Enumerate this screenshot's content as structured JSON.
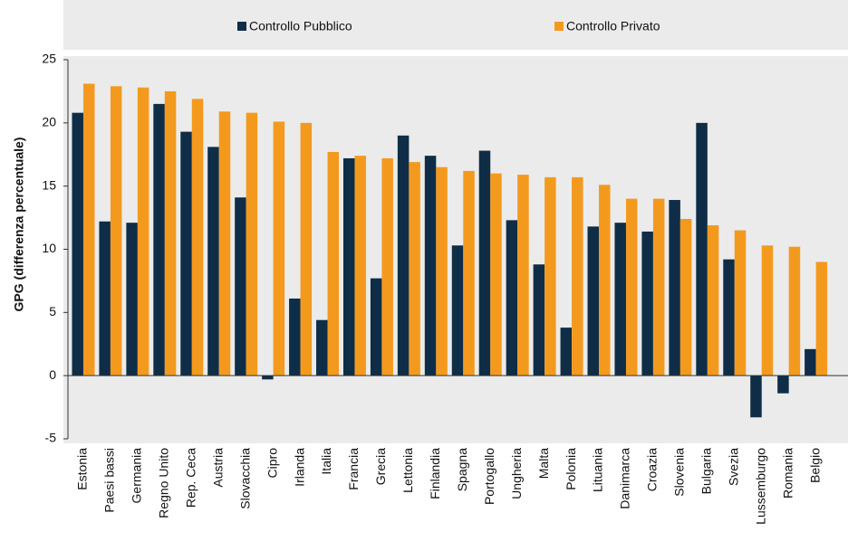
{
  "chart_data": {
    "type": "bar",
    "y_label": "GPG (differenza percentuale)",
    "categories": [
      "Estonia",
      "Paesi bassi",
      "Germania",
      "Regno Unito",
      "Rep. Ceca",
      "Austria",
      "Slovacchia",
      "Cipro",
      "Irlanda",
      "Italia",
      "Francia",
      "Grecia",
      "Lettonia",
      "Finlandia",
      "Spagna",
      "Portogallo",
      "Ungheria",
      "Malta",
      "Polonia",
      "Lituania",
      "Danimarca",
      "Croazia",
      "Slovenia",
      "Bulgaria",
      "Svezia",
      "Lussemburgo",
      "Romania",
      "Belgio"
    ],
    "series": [
      {
        "name": "Controllo Pubblico",
        "color": "#0f2d46",
        "values": [
          20.8,
          12.2,
          12.1,
          21.5,
          19.3,
          18.1,
          14.1,
          -0.3,
          6.1,
          4.4,
          17.2,
          7.7,
          19.0,
          17.4,
          10.3,
          17.8,
          12.3,
          8.8,
          3.8,
          11.8,
          12.1,
          11.4,
          13.9,
          20.0,
          9.2,
          -3.3,
          -1.4,
          2.1
        ]
      },
      {
        "name": "Controllo Privato",
        "color": "#f39a1e",
        "values": [
          23.1,
          22.9,
          22.8,
          22.5,
          21.9,
          20.9,
          20.8,
          20.1,
          20.0,
          17.7,
          17.4,
          17.2,
          16.9,
          16.5,
          16.2,
          16.0,
          15.9,
          15.7,
          15.7,
          15.1,
          14.0,
          14.0,
          12.4,
          11.9,
          11.5,
          10.3,
          10.2,
          9.0
        ]
      }
    ],
    "ylim": [
      -5,
      25
    ],
    "yticks": [
      -5,
      0,
      5,
      10,
      15,
      20,
      25
    ],
    "legend": "top"
  }
}
